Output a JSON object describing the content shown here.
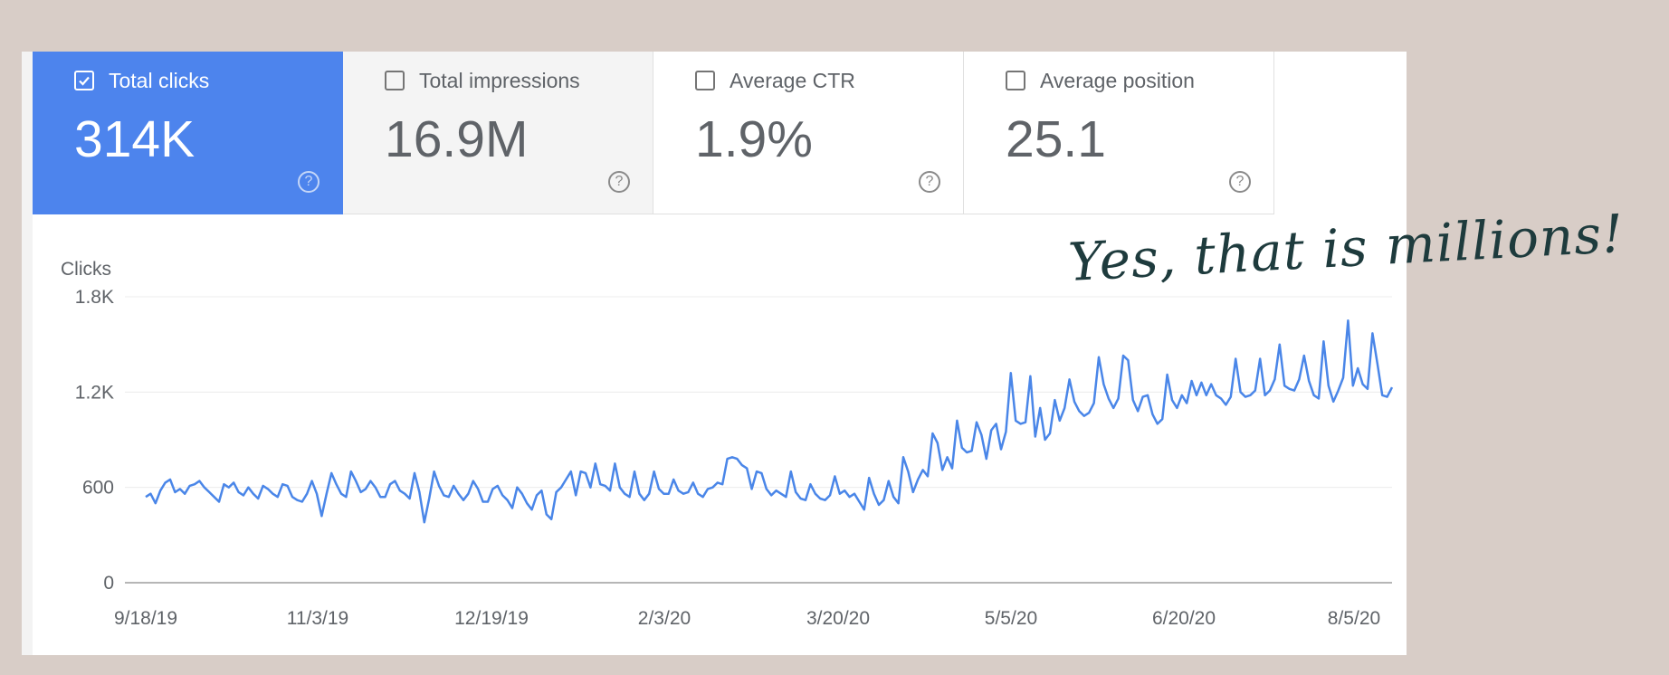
{
  "cards": [
    {
      "label": "Total clicks",
      "value": "314K",
      "checked": true,
      "help": "?"
    },
    {
      "label": "Total impressions",
      "value": "16.9M",
      "checked": false,
      "help": "?"
    },
    {
      "label": "Average CTR",
      "value": "1.9%",
      "checked": false,
      "help": "?"
    },
    {
      "label": "Average position",
      "value": "25.1",
      "checked": false,
      "help": "?"
    }
  ],
  "annotation": "Yes, that is millions!",
  "colors": {
    "accent": "#4d84ed",
    "line": "#4a86e8",
    "background": "#d8cdc7",
    "annotation": "#1e3b3d"
  },
  "chart_data": {
    "type": "line",
    "ylabel": "Clicks",
    "yticks": [
      "0",
      "600",
      "1.2K",
      "1.8K"
    ],
    "ylim": [
      0,
      1800
    ],
    "xticks": [
      "9/18/19",
      "11/3/19",
      "12/19/19",
      "2/3/20",
      "3/20/20",
      "5/5/20",
      "6/20/20",
      "8/5/20"
    ],
    "x_range": [
      "9/18/19",
      "8/14/20"
    ],
    "grid": true,
    "series": [
      {
        "values": [
          540,
          560,
          500,
          580,
          630,
          650,
          570,
          590,
          560,
          610,
          620,
          640,
          600,
          570,
          540,
          510,
          620,
          600,
          630,
          570,
          550,
          600,
          560,
          530,
          610,
          590,
          560,
          540,
          620,
          610,
          540,
          520,
          510,
          560,
          640,
          560,
          420,
          560,
          690,
          620,
          560,
          540,
          700,
          640,
          570,
          590,
          640,
          600,
          540,
          540,
          620,
          640,
          580,
          560,
          530,
          690,
          570,
          380,
          530,
          700,
          610,
          550,
          540,
          610,
          560,
          520,
          560,
          640,
          590,
          510,
          510,
          590,
          610,
          550,
          520,
          470,
          600,
          560,
          500,
          460,
          550,
          580,
          430,
          400,
          570,
          600,
          650,
          700,
          550,
          700,
          690,
          600,
          750,
          620,
          610,
          580,
          750,
          600,
          560,
          540,
          700,
          560,
          520,
          560,
          700,
          590,
          560,
          560,
          650,
          580,
          560,
          570,
          630,
          560,
          540,
          590,
          600,
          630,
          620,
          780,
          790,
          780,
          740,
          720,
          590,
          700,
          690,
          590,
          550,
          580,
          560,
          540,
          700,
          570,
          530,
          520,
          620,
          560,
          530,
          520,
          550,
          670,
          560,
          580,
          540,
          560,
          510,
          460,
          660,
          560,
          490,
          520,
          640,
          540,
          500,
          790,
          700,
          570,
          650,
          710,
          670,
          940,
          880,
          710,
          790,
          720,
          1020,
          850,
          820,
          830,
          1010,
          930,
          780,
          960,
          1000,
          840,
          950,
          1320,
          1020,
          1000,
          1010,
          1300,
          920,
          1100,
          900,
          940,
          1150,
          1020,
          1100,
          1280,
          1140,
          1080,
          1050,
          1070,
          1130,
          1420,
          1250,
          1160,
          1100,
          1160,
          1430,
          1400,
          1150,
          1080,
          1170,
          1180,
          1060,
          1000,
          1030,
          1310,
          1150,
          1100,
          1180,
          1130,
          1270,
          1180,
          1260,
          1180,
          1250,
          1180,
          1160,
          1120,
          1170,
          1410,
          1200,
          1170,
          1180,
          1210,
          1410,
          1180,
          1210,
          1280,
          1500,
          1240,
          1220,
          1210,
          1280,
          1430,
          1270,
          1180,
          1160,
          1520,
          1240,
          1140,
          1210,
          1290,
          1650,
          1240,
          1350,
          1250,
          1220,
          1570,
          1380,
          1180,
          1170,
          1230
        ]
      }
    ]
  }
}
